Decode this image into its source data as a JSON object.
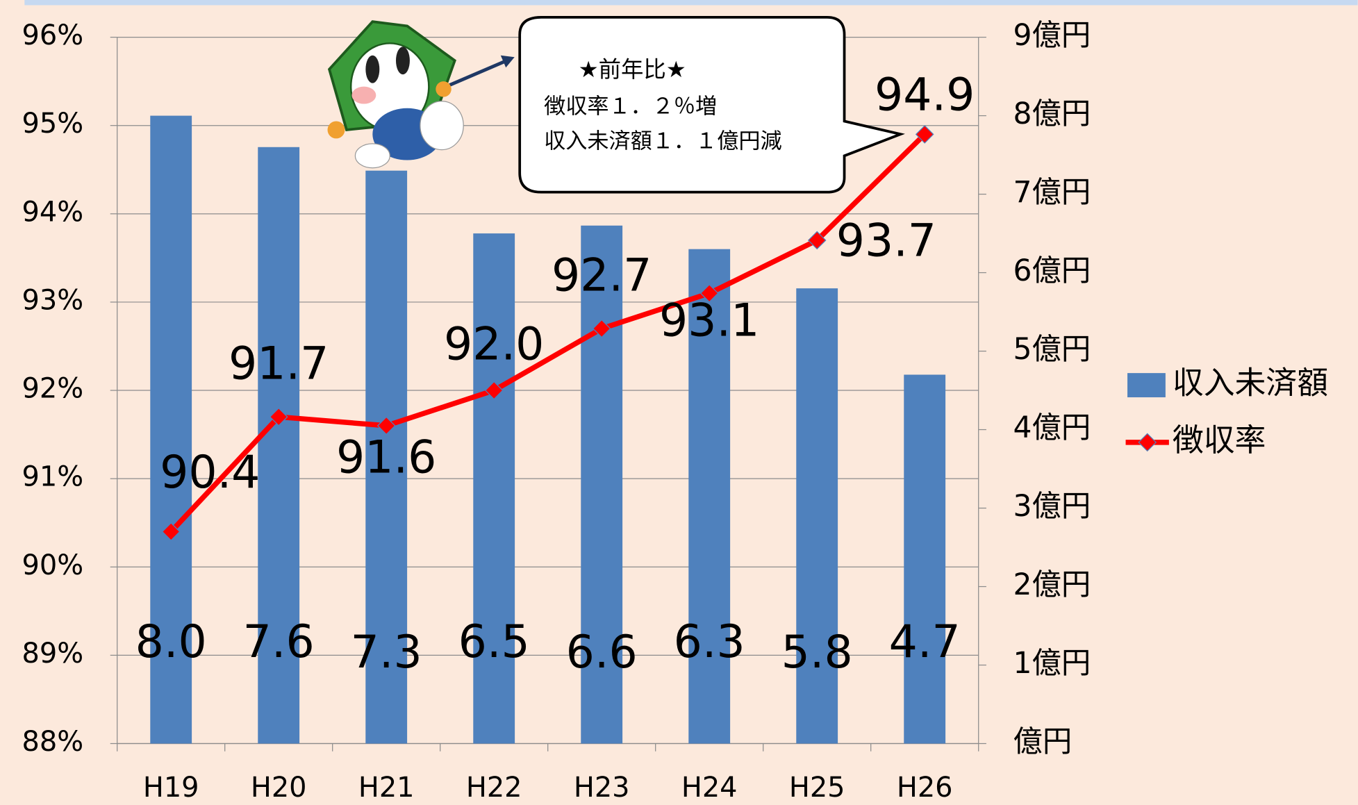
{
  "chart_data": {
    "type": "combo",
    "categories": [
      "H19",
      "H20",
      "H21",
      "H22",
      "H23",
      "H24",
      "H25",
      "H26"
    ],
    "series": [
      {
        "name": "収入未済額",
        "type": "bar",
        "axis": "y2",
        "color": "#4f81bd",
        "values": [
          8.0,
          7.6,
          7.3,
          6.5,
          6.6,
          6.3,
          5.8,
          4.7
        ],
        "value_labels": [
          "8.0",
          "7.6",
          "7.3",
          "6.5",
          "6.6",
          "6.3",
          "5.8",
          "4.7"
        ]
      },
      {
        "name": "徴収率",
        "type": "line",
        "axis": "y",
        "color": "#ff0000",
        "values": [
          90.4,
          91.7,
          91.6,
          92.0,
          92.7,
          93.1,
          93.7,
          94.9
        ],
        "value_labels": [
          "90.4",
          "91.7",
          "91.6",
          "92.0",
          "92.7",
          "93.1",
          "93.7",
          "94.9"
        ]
      }
    ],
    "ylim": [
      88,
      96
    ],
    "yticks": [
      {
        "value": 88,
        "label": "88%"
      },
      {
        "value": 89,
        "label": "89%"
      },
      {
        "value": 90,
        "label": "90%"
      },
      {
        "value": 91,
        "label": "91%"
      },
      {
        "value": 92,
        "label": "92%"
      },
      {
        "value": 93,
        "label": "93%"
      },
      {
        "value": 94,
        "label": "94%"
      },
      {
        "value": 95,
        "label": "95%"
      },
      {
        "value": 96,
        "label": "96%"
      }
    ],
    "y2lim": [
      0,
      9
    ],
    "y2ticks": [
      {
        "value": 0,
        "label": "億円"
      },
      {
        "value": 1,
        "label": "1億円"
      },
      {
        "value": 2,
        "label": "2億円"
      },
      {
        "value": 3,
        "label": "3億円"
      },
      {
        "value": 4,
        "label": "4億円"
      },
      {
        "value": 5,
        "label": "5億円"
      },
      {
        "value": 6,
        "label": "6億円"
      },
      {
        "value": 7,
        "label": "7億円"
      },
      {
        "value": 8,
        "label": "8億円"
      },
      {
        "value": 9,
        "label": "9億円"
      }
    ],
    "grid": true,
    "legend": "right",
    "callout": [
      "★前年比★",
      "徴収率１．２％増",
      "収入未済額１．１億円減"
    ]
  }
}
